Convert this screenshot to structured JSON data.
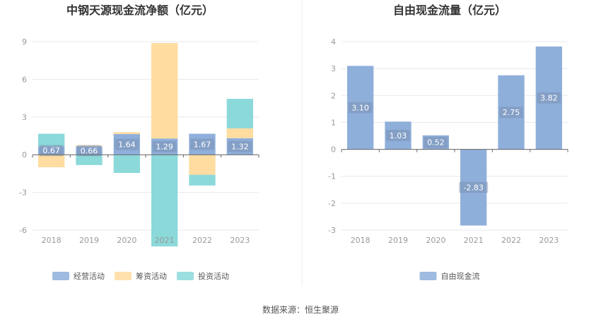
{
  "colors": {
    "operating": "#8fafdb",
    "financing": "#ffdca0",
    "investing": "#8cd9da",
    "fcf": "#8fafdb",
    "grid": "#e8e8ee",
    "axis": "#666666"
  },
  "chart_data": [
    {
      "type": "bar",
      "stacked": true,
      "title": "中钢天源现金流净额（亿元）",
      "categories": [
        "2018",
        "2019",
        "2020",
        "2021",
        "2022",
        "2023"
      ],
      "y_ticks": [
        "9",
        "6",
        "3",
        "0",
        "-3",
        "-6"
      ],
      "ylim": [
        -6,
        9
      ],
      "grid": true,
      "legend_position": "bottom",
      "series": [
        {
          "name": "经营活动",
          "key": "operating",
          "values": [
            0.67,
            0.66,
            1.64,
            1.29,
            1.67,
            1.32
          ]
        },
        {
          "name": "筹资活动",
          "key": "financing",
          "values": [
            -1.0,
            0.08,
            0.15,
            7.6,
            -1.6,
            0.78
          ]
        },
        {
          "name": "投资活动",
          "key": "investing",
          "values": [
            1.0,
            -0.82,
            -1.45,
            -7.3,
            -0.85,
            2.35
          ]
        }
      ],
      "data_labels": [
        "0.67",
        "0.66",
        "1.64",
        "1.29",
        "1.67",
        "1.32"
      ]
    },
    {
      "type": "bar",
      "title": "自由现金流量（亿元）",
      "categories": [
        "2018",
        "2019",
        "2020",
        "2021",
        "2022",
        "2023"
      ],
      "y_ticks": [
        "4",
        "3",
        "2",
        "1",
        "0",
        "-1",
        "-2",
        "-3"
      ],
      "ylim": [
        -3,
        4
      ],
      "grid": true,
      "legend_position": "bottom",
      "series": [
        {
          "name": "自由现金流",
          "key": "fcf",
          "values": [
            3.1,
            1.03,
            0.52,
            -2.83,
            2.75,
            3.82
          ]
        }
      ],
      "data_labels": [
        "3.10",
        "1.03",
        "0.52",
        "-2.83",
        "2.75",
        "3.82"
      ]
    }
  ],
  "source": "数据来源：恒生聚源"
}
